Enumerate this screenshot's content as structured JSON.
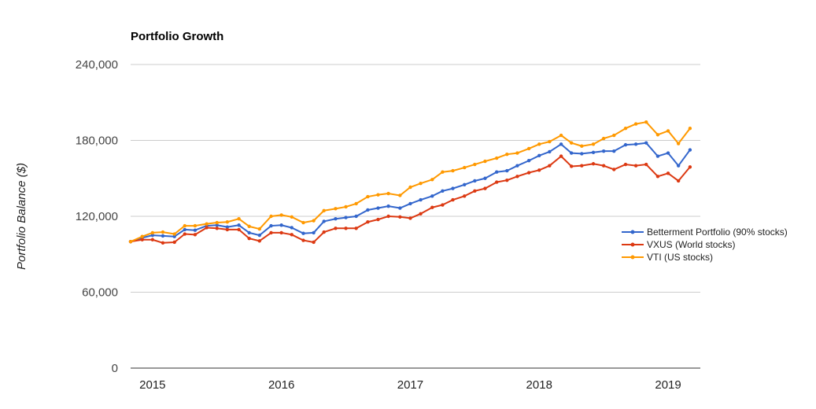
{
  "chart_data": {
    "type": "line",
    "title": "Portfolio Growth",
    "ylabel": "Portfolio Balance ($)",
    "xlabel": "",
    "ylim": [
      0,
      240000
    ],
    "yticks": [
      0,
      60000,
      120000,
      180000,
      240000
    ],
    "ytick_labels": [
      "0",
      "60,000",
      "120,000",
      "180,000",
      "240,000"
    ],
    "xlim": [
      2014.83,
      2019.25
    ],
    "xticks": [
      2015,
      2016,
      2017,
      2018,
      2019
    ],
    "xtick_labels": [
      "2015",
      "2016",
      "2017",
      "2018",
      "2019"
    ],
    "grid": true,
    "legend_position": "right",
    "x": [
      2014.83,
      2014.92,
      2015.0,
      2015.08,
      2015.17,
      2015.25,
      2015.33,
      2015.42,
      2015.5,
      2015.58,
      2015.67,
      2015.75,
      2015.83,
      2015.92,
      2016.0,
      2016.08,
      2016.17,
      2016.25,
      2016.33,
      2016.42,
      2016.5,
      2016.58,
      2016.67,
      2016.75,
      2016.83,
      2016.92,
      2017.0,
      2017.08,
      2017.17,
      2017.25,
      2017.33,
      2017.42,
      2017.5,
      2017.58,
      2017.67,
      2017.75,
      2017.83,
      2017.92,
      2018.0,
      2018.08,
      2018.17,
      2018.25,
      2018.33,
      2018.42,
      2018.5,
      2018.58,
      2018.67,
      2018.75,
      2018.83,
      2018.92,
      2019.0,
      2019.08,
      2019.17
    ],
    "series": [
      {
        "name": "Betterment Portfolio (90% stocks)",
        "color": "#3366cc",
        "values": [
          100000,
          103000,
          105000,
          104500,
          104000,
          109500,
          109000,
          112500,
          113000,
          111500,
          113000,
          107000,
          105000,
          112500,
          113000,
          111000,
          106500,
          107000,
          116000,
          118000,
          119000,
          120000,
          125000,
          126500,
          128000,
          126500,
          130000,
          133000,
          136000,
          140000,
          142000,
          145000,
          148000,
          150000,
          155000,
          156000,
          160000,
          164000,
          168000,
          171000,
          177000,
          170000,
          169500,
          170500,
          171500,
          171500,
          176500,
          177000,
          178000,
          167500,
          170000,
          160000,
          172500
        ]
      },
      {
        "name": "VXUS (World stocks)",
        "color": "#dc3912",
        "values": [
          100000,
          101500,
          101500,
          99000,
          99500,
          106000,
          105500,
          111000,
          110500,
          109500,
          109500,
          102500,
          100500,
          107000,
          107000,
          105500,
          101000,
          99500,
          107500,
          110500,
          110500,
          110500,
          115500,
          117500,
          120000,
          119500,
          118500,
          122000,
          127000,
          129000,
          133000,
          136000,
          140000,
          142000,
          147000,
          148500,
          151500,
          154500,
          156500,
          160000,
          167500,
          159500,
          160000,
          161500,
          160000,
          157000,
          161000,
          160000,
          161000,
          151500,
          154000,
          148000,
          159000
        ]
      },
      {
        "name": "VTI (US stocks)",
        "color": "#ff9900",
        "values": [
          100000,
          104000,
          107000,
          107500,
          106000,
          112500,
          112500,
          114000,
          115000,
          115500,
          118000,
          112000,
          110000,
          120000,
          121000,
          119500,
          115000,
          116500,
          124500,
          126000,
          127500,
          130000,
          135500,
          137000,
          138000,
          136500,
          143000,
          146000,
          149000,
          155000,
          156000,
          158500,
          161000,
          163500,
          166000,
          169000,
          170000,
          173500,
          177000,
          179000,
          184000,
          178000,
          175500,
          177000,
          181500,
          184000,
          189500,
          193000,
          194500,
          184500,
          187500,
          177500,
          189500
        ]
      }
    ]
  }
}
